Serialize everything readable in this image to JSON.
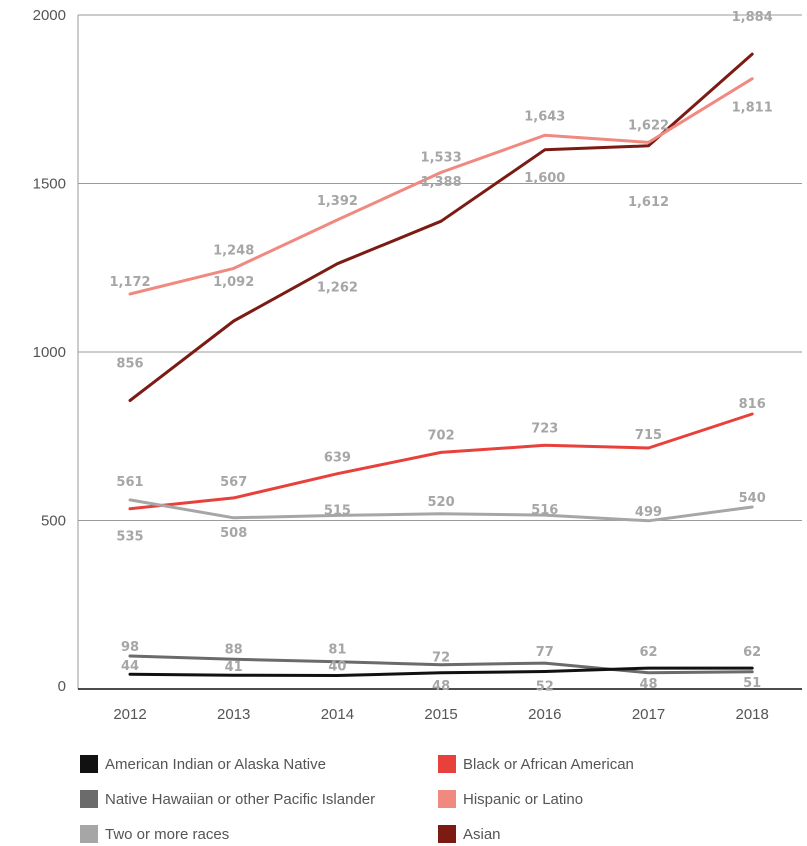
{
  "chart_data": {
    "type": "line",
    "x": [
      "2012",
      "2013",
      "2014",
      "2015",
      "2016",
      "2017",
      "2018"
    ],
    "ylim": [
      0,
      2000
    ],
    "yticks": [
      "0",
      "500",
      "1000",
      "1500",
      "2000"
    ],
    "grid": true,
    "legend_position": "bottom",
    "series": [
      {
        "name": "Asian",
        "color": "#7b1b14",
        "values": [
          856,
          1092,
          1262,
          1388,
          1600,
          1612,
          1884
        ],
        "labels": [
          "856",
          "1,092",
          "1,262",
          "1,388",
          "1,600",
          "1,612",
          "1,884"
        ]
      },
      {
        "name": "Hispanic or Latino",
        "color": "#f08a80",
        "values": [
          1172,
          1248,
          1392,
          1533,
          1643,
          1622,
          1811
        ],
        "labels": [
          "1,172",
          "1,248",
          "1,392",
          "1,533",
          "1,643",
          "1,622",
          "1,811"
        ]
      },
      {
        "name": "Black or African American",
        "color": "#e8403a",
        "values": [
          535,
          567,
          639,
          702,
          723,
          715,
          816
        ],
        "labels": [
          "535",
          "567",
          "639",
          "702",
          "723",
          "715",
          "816"
        ]
      },
      {
        "name": "Two or more races",
        "color": "#a6a6a6",
        "values": [
          561,
          508,
          515,
          520,
          516,
          499,
          540
        ],
        "labels": [
          "561",
          "508",
          "515",
          "520",
          "516",
          "499",
          "540"
        ]
      },
      {
        "name": "Native Hawaiian or other Pacific Islander",
        "color": "#6b6b6b",
        "values": [
          98,
          88,
          81,
          72,
          77,
          48,
          51
        ],
        "labels": [
          "98",
          "88",
          "81",
          "72",
          "77",
          "48",
          "51"
        ]
      },
      {
        "name": "American Indian or Alaska Native",
        "color": "#111111",
        "values": [
          44,
          41,
          40,
          48,
          52,
          62,
          62
        ],
        "labels": [
          "44",
          "41",
          "40",
          "48",
          "52",
          "62",
          "62"
        ]
      }
    ]
  },
  "legend": [
    {
      "label": "American Indian or Alaska Native",
      "color": "#111111"
    },
    {
      "label": "Black or African American",
      "color": "#e8403a"
    },
    {
      "label": "Native Hawaiian or other Pacific Islander",
      "color": "#6b6b6b"
    },
    {
      "label": "Hispanic or Latino",
      "color": "#f08a80"
    },
    {
      "label": "Two or more races",
      "color": "#a6a6a6"
    },
    {
      "label": "Asian",
      "color": "#7b1b14"
    }
  ]
}
